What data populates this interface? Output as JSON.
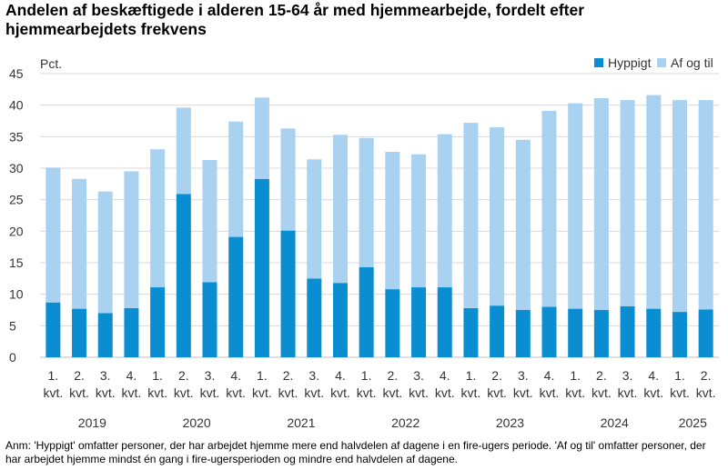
{
  "title": "Andelen af beskæftigede i alderen 15-64 år med hjemmearbejde, fordelt efter hjemmearbejdets frekvens",
  "note": "Anm: 'Hyppigt' omfatter personer, der har arbejdet hjemme mere end halvdelen af dagene i en fire-ugers periode. 'Af og til' omfatter personer, der har arbejdet hjemme mindst én gang i fire-ugersperioden og mindre end halvdelen af dagene.",
  "chart_data": {
    "type": "bar",
    "stacked": true,
    "unit_label": "Pct.",
    "ylim": [
      0,
      45
    ],
    "yticks": [
      "0",
      "5",
      "10",
      "15",
      "20",
      "25",
      "30",
      "35",
      "40",
      "45"
    ],
    "grid": true,
    "legend": "top-right",
    "categories": [
      {
        "q": "1.",
        "k": "kvt."
      },
      {
        "q": "2.",
        "k": "kvt."
      },
      {
        "q": "3.",
        "k": "kvt."
      },
      {
        "q": "4.",
        "k": "kvt."
      },
      {
        "q": "1.",
        "k": "kvt."
      },
      {
        "q": "2.",
        "k": "kvt."
      },
      {
        "q": "3.",
        "k": "kvt."
      },
      {
        "q": "4.",
        "k": "kvt."
      },
      {
        "q": "1.",
        "k": "kvt."
      },
      {
        "q": "2.",
        "k": "kvt."
      },
      {
        "q": "3.",
        "k": "kvt."
      },
      {
        "q": "4.",
        "k": "kvt."
      },
      {
        "q": "1.",
        "k": "kvt."
      },
      {
        "q": "2.",
        "k": "kvt."
      },
      {
        "q": "3.",
        "k": "kvt."
      },
      {
        "q": "4.",
        "k": "kvt."
      },
      {
        "q": "1.",
        "k": "kvt."
      },
      {
        "q": "2.",
        "k": "kvt."
      },
      {
        "q": "3.",
        "k": "kvt."
      },
      {
        "q": "4.",
        "k": "kvt."
      },
      {
        "q": "1.",
        "k": "kvt."
      },
      {
        "q": "2.",
        "k": "kvt."
      },
      {
        "q": "3.",
        "k": "kvt."
      },
      {
        "q": "4.",
        "k": "kvt."
      },
      {
        "q": "1.",
        "k": "kvt."
      },
      {
        "q": "2.",
        "k": "kvt."
      }
    ],
    "years": [
      {
        "label": "2019",
        "count": 4
      },
      {
        "label": "2020",
        "count": 4
      },
      {
        "label": "2021",
        "count": 4
      },
      {
        "label": "2022",
        "count": 4
      },
      {
        "label": "2023",
        "count": 4
      },
      {
        "label": "2024",
        "count": 4
      },
      {
        "label": "2025",
        "count": 2
      }
    ],
    "series": [
      {
        "name": "Hyppigt",
        "color": "#0b8ed1",
        "values": [
          8.7,
          7.7,
          7.0,
          7.8,
          11.1,
          25.9,
          11.9,
          19.1,
          28.3,
          20.1,
          12.5,
          11.8,
          14.3,
          10.8,
          11.1,
          11.1,
          7.8,
          8.2,
          7.5,
          8.0,
          7.7,
          7.5,
          8.1,
          7.7,
          7.2,
          7.6
        ]
      },
      {
        "name": "Af og til",
        "color": "#a9d1f0",
        "values": [
          21.4,
          20.6,
          19.3,
          21.7,
          21.9,
          13.7,
          19.4,
          18.3,
          12.9,
          16.2,
          18.9,
          23.5,
          20.5,
          21.8,
          21.1,
          24.3,
          29.4,
          28.3,
          27.0,
          31.1,
          32.6,
          33.6,
          32.7,
          33.9,
          33.6,
          33.2
        ]
      }
    ]
  }
}
